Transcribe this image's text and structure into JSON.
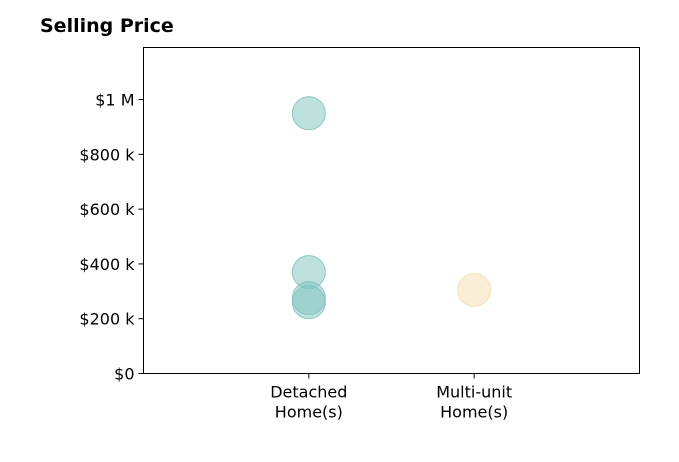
{
  "chart_data": {
    "type": "scatter",
    "title": "Selling Price",
    "categories": [
      [
        "Detached",
        "Home(s)"
      ],
      [
        "Multi-unit",
        "Home(s)"
      ]
    ],
    "y_ticks": [
      {
        "value": 0,
        "label": "$0"
      },
      {
        "value": 200000,
        "label": "$200 k"
      },
      {
        "value": 400000,
        "label": "$400 k"
      },
      {
        "value": 600000,
        "label": "$600 k"
      },
      {
        "value": 800000,
        "label": "$800 k"
      },
      {
        "value": 1000000,
        "label": "$1 M"
      }
    ],
    "ylim": [
      0,
      1190000
    ],
    "xlim": [
      -1,
      2
    ],
    "grid": false,
    "series": [
      {
        "category_index": 0,
        "color": "#7fc4bd",
        "values": [
          950000,
          370000,
          275000,
          260000
        ]
      },
      {
        "category_index": 1,
        "color": "#f6deb0",
        "values": [
          305000
        ]
      }
    ]
  }
}
